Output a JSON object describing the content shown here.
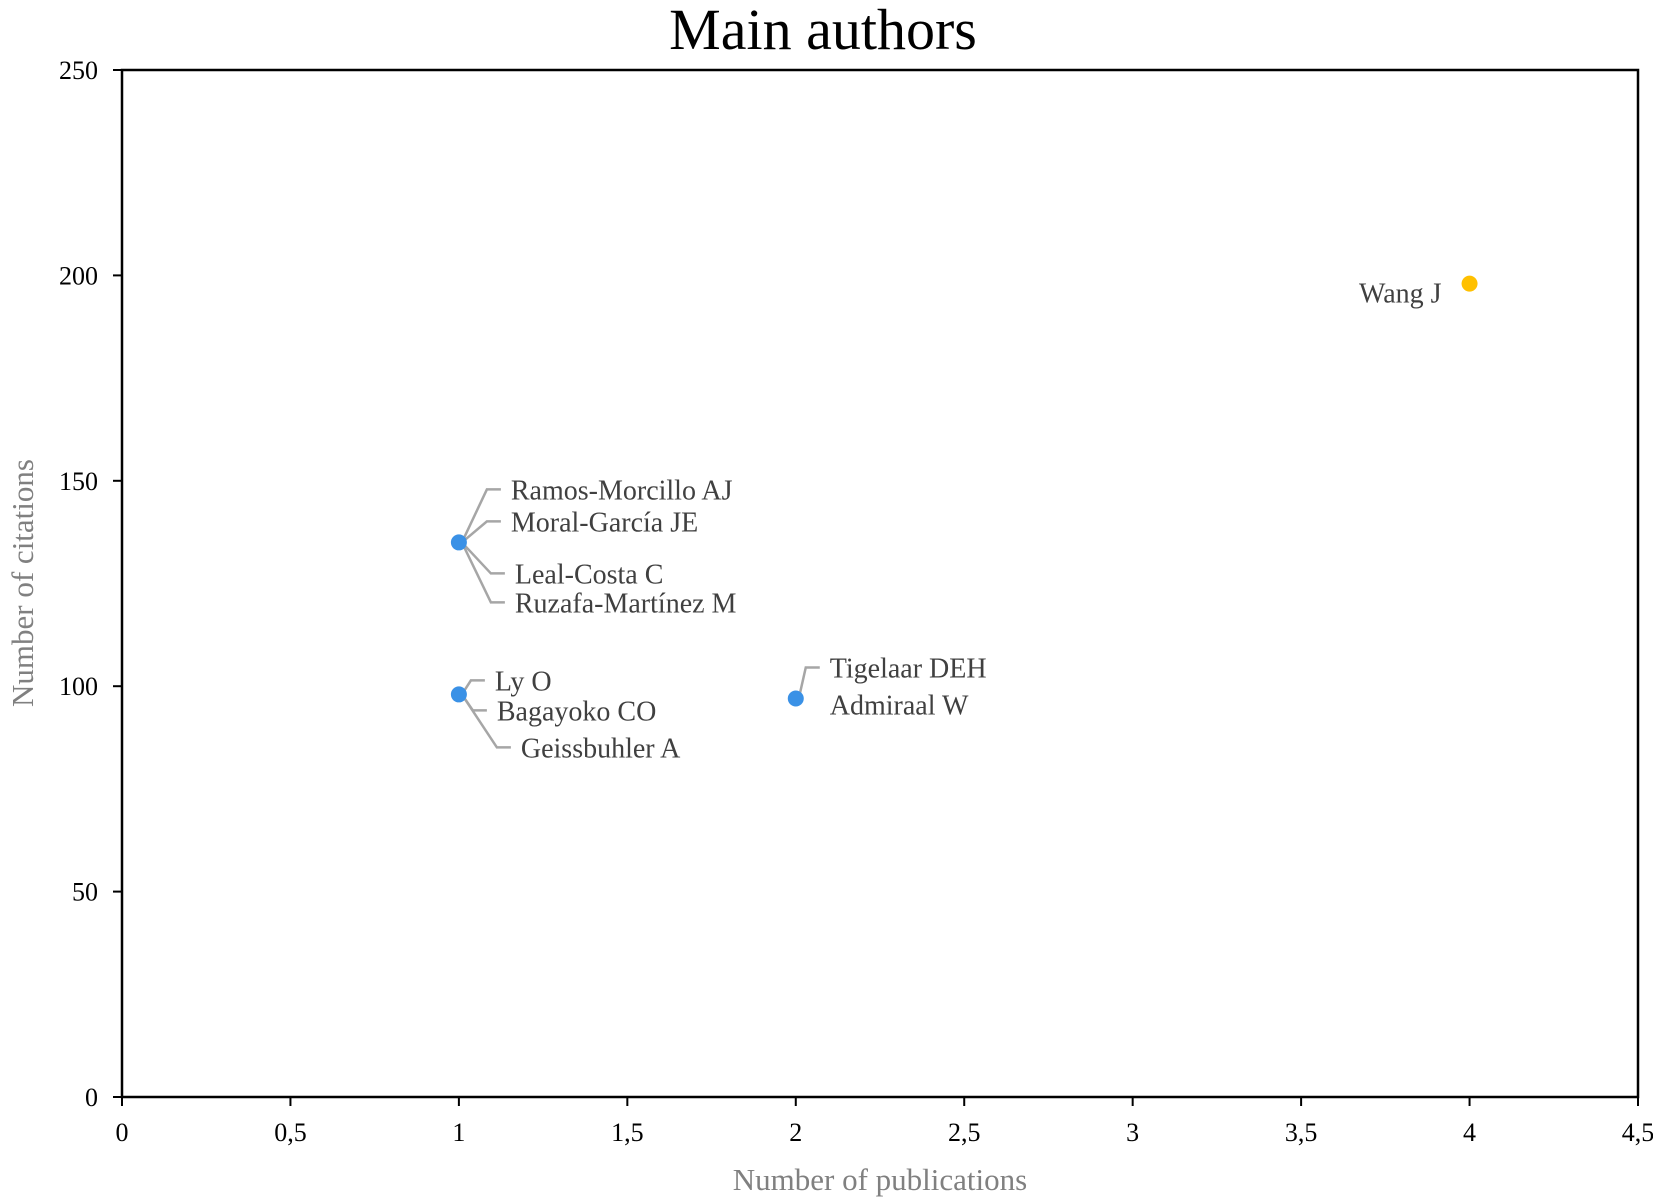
{
  "chart_data": {
    "type": "scatter",
    "title": "Main authors",
    "xlabel": "Number of publications",
    "ylabel": "Number of citations",
    "xlim": [
      0,
      4.5
    ],
    "ylim": [
      0,
      250
    ],
    "xticks": [
      "0",
      "0,5",
      "1",
      "1,5",
      "2",
      "2,5",
      "3",
      "3,5",
      "4",
      "4,5"
    ],
    "yticks": [
      "0",
      "50",
      "100",
      "150",
      "200",
      "250"
    ],
    "grid": false,
    "colors": {
      "primary": "#3a91e6",
      "highlight": "#ffc000"
    },
    "points": [
      {
        "x": 1,
        "y": 135,
        "color": "#3a91e6",
        "labels": [
          "Ramos-Morcillo AJ",
          "Moral-García JE",
          "Leal-Costa C",
          "Ruzafa-Martínez M"
        ]
      },
      {
        "x": 1,
        "y": 98,
        "color": "#3a91e6",
        "labels": [
          "Ly O",
          "Bagayoko CO",
          "Geissbuhler A"
        ]
      },
      {
        "x": 2,
        "y": 97,
        "color": "#3a91e6",
        "labels": [
          "Tigelaar DEH",
          "Admiraal W"
        ]
      },
      {
        "x": 4,
        "y": 198,
        "color": "#ffc000",
        "labels": [
          "Wang J"
        ]
      }
    ]
  }
}
